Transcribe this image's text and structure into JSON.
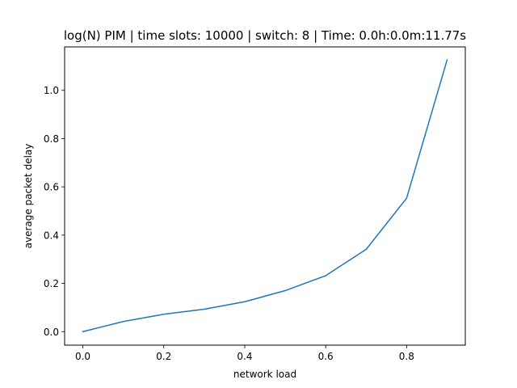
{
  "chart_data": {
    "type": "line",
    "title": "log(N) PIM | time slots: 10000 | switch: 8 | Time: 0.0h:0.0m:11.77s",
    "xlabel": "network load",
    "ylabel": "average packet delay",
    "xlim": [
      -0.045,
      0.945
    ],
    "ylim": [
      -0.056,
      1.18
    ],
    "xticks": [
      0.0,
      0.2,
      0.4,
      0.6,
      0.8
    ],
    "xtick_labels": [
      "0.0",
      "0.2",
      "0.4",
      "0.6",
      "0.8"
    ],
    "yticks": [
      0.0,
      0.2,
      0.4,
      0.6,
      0.8,
      1.0
    ],
    "ytick_labels": [
      "0.0",
      "0.2",
      "0.4",
      "0.6",
      "0.8",
      "1.0"
    ],
    "grid": false,
    "series": [
      {
        "color": "#1f77b4",
        "x": [
          0.0,
          0.1,
          0.2,
          0.3,
          0.4,
          0.5,
          0.6,
          0.7,
          0.8,
          0.9
        ],
        "y": [
          0.0,
          0.042,
          0.072,
          0.093,
          0.124,
          0.17,
          0.232,
          0.341,
          0.553,
          1.126
        ]
      }
    ]
  }
}
